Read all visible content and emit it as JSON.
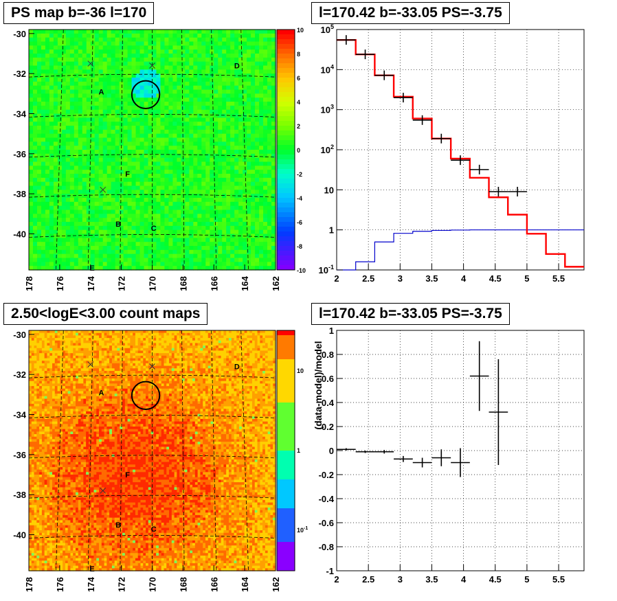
{
  "panels": {
    "top_left_title": "PS map b=-36 l=170",
    "top_right_title": "l=170.42 b=-33.05 PS=-3.75",
    "bottom_left_title": "2.50<logE<3.00 count maps",
    "bottom_right_title": "l=170.42 b=-33.05 PS=-3.75"
  },
  "colors": {
    "data": "#000000",
    "model": "#ff0000",
    "model_low": "#0000cc",
    "grid": "#000000"
  },
  "chart_data": [
    {
      "type": "heatmap",
      "title": "PS map b=-36 l=170",
      "x_ticks": [
        "178",
        "176",
        "174",
        "172",
        "170",
        "168",
        "166",
        "164",
        "162"
      ],
      "y_ticks": [
        "-30",
        "-32",
        "-34",
        "-36",
        "-38",
        "-40"
      ],
      "xlim": [
        178,
        162
      ],
      "ylim": [
        -41.8,
        -29.8
      ],
      "colorbar_ticks": [
        "10",
        "8",
        "6",
        "4",
        "2",
        "0",
        "-2",
        "-4",
        "-6",
        "-8",
        "-10"
      ],
      "colorbar_range": [
        -10,
        10
      ],
      "typical_value": 0.5,
      "labels": [
        {
          "text": "A",
          "l": 173.3,
          "b": -32.9
        },
        {
          "text": "D",
          "l": 164.5,
          "b": -31.6
        },
        {
          "text": "F",
          "l": 171.6,
          "b": -37.0
        },
        {
          "text": "B",
          "l": 172.2,
          "b": -39.5
        },
        {
          "text": "C",
          "l": 169.9,
          "b": -39.7
        },
        {
          "text": "E",
          "l": 173.9,
          "b": -41.7
        }
      ],
      "cross_markers": [
        {
          "l": 174.0,
          "b": -31.5
        },
        {
          "l": 170.0,
          "b": -31.6
        },
        {
          "l": 173.2,
          "b": -37.8
        }
      ],
      "source_circle": {
        "l": 170.42,
        "b": -33.05,
        "r_deg": 0.5
      }
    },
    {
      "type": "line",
      "title": "l=170.42 b=-33.05 PS=-3.75",
      "yscale": "log",
      "xlim": [
        2,
        5.9
      ],
      "ylim": [
        0.1,
        100000
      ],
      "x_ticks": [
        "2",
        "2.5",
        "3",
        "3.5",
        "4",
        "4.5",
        "5",
        "5.5"
      ],
      "y_ticks": [
        "10^-1",
        "1",
        "10",
        "10^2",
        "10^3",
        "10^4",
        "10^5"
      ],
      "data_points": {
        "x": [
          2.15,
          2.45,
          2.75,
          3.05,
          3.35,
          3.65,
          3.95,
          4.25,
          4.55,
          4.85
        ],
        "y": [
          55000,
          24000,
          7200,
          2000,
          550,
          190,
          55,
          32,
          9,
          9
        ],
        "xerr": 0.15
      },
      "model_red": {
        "edges": [
          2.0,
          2.3,
          2.6,
          2.9,
          3.2,
          3.5,
          3.8,
          4.1,
          4.4,
          4.7,
          5.0,
          5.3,
          5.6,
          5.9
        ],
        "values": [
          55000,
          24000,
          7200,
          2100,
          600,
          190,
          60,
          20,
          6.5,
          2.4,
          0.8,
          0.25,
          0.12
        ]
      },
      "model_blue": {
        "edges": [
          2.0,
          2.3,
          2.6,
          2.9,
          3.2,
          3.5,
          3.8,
          4.1,
          4.4,
          4.7,
          5.0,
          5.3,
          5.6,
          5.9
        ],
        "values": [
          0.1,
          0.16,
          0.5,
          0.82,
          0.92,
          0.97,
          0.99,
          1.0,
          1.0,
          1.0,
          1.0,
          1.0,
          1.0
        ]
      }
    },
    {
      "type": "heatmap",
      "title": "2.50<logE<3.00 count maps",
      "x_ticks": [
        "178",
        "176",
        "174",
        "172",
        "170",
        "168",
        "166",
        "164",
        "162"
      ],
      "y_ticks": [
        "-30",
        "-32",
        "-34",
        "-36",
        "-38",
        "-40"
      ],
      "xlim": [
        178,
        162
      ],
      "ylim": [
        -41.8,
        -29.8
      ],
      "colorbar_ticks": [
        "10",
        "1",
        "10^-1"
      ],
      "colorbar_scale": "log",
      "labels": [
        {
          "text": "A",
          "l": 173.3,
          "b": -32.9
        },
        {
          "text": "D",
          "l": 164.5,
          "b": -31.6
        },
        {
          "text": "F",
          "l": 171.6,
          "b": -37.0
        },
        {
          "text": "B",
          "l": 172.2,
          "b": -39.5
        },
        {
          "text": "C",
          "l": 169.9,
          "b": -39.7
        },
        {
          "text": "E",
          "l": 173.9,
          "b": -41.7
        }
      ],
      "cross_markers": [
        {
          "l": 174.0,
          "b": -31.5
        },
        {
          "l": 170.0,
          "b": -31.6
        },
        {
          "l": 173.2,
          "b": -37.8
        }
      ],
      "source_circle": {
        "l": 170.42,
        "b": -33.05,
        "r_deg": 0.5
      }
    },
    {
      "type": "scatter",
      "title": "l=170.42 b=-33.05 PS=-3.75",
      "ylabel": "(data-model)/model",
      "xlim": [
        2,
        5.9
      ],
      "ylim": [
        -1,
        1
      ],
      "x_ticks": [
        "2",
        "2.5",
        "3",
        "3.5",
        "4",
        "4.5",
        "5",
        "5.5"
      ],
      "y_ticks": [
        "-1",
        "-0.8",
        "-0.6",
        "-0.4",
        "-0.2",
        "0",
        "0.2",
        "0.4",
        "0.6",
        "0.8",
        "1"
      ],
      "points": {
        "x": [
          2.15,
          2.45,
          2.75,
          3.05,
          3.35,
          3.65,
          3.95,
          4.25,
          4.55
        ],
        "y": [
          0.01,
          -0.01,
          -0.01,
          -0.07,
          -0.1,
          -0.06,
          -0.1,
          0.62,
          0.32
        ],
        "yerr": [
          0.01,
          0.01,
          0.015,
          0.025,
          0.04,
          0.07,
          0.12,
          0.29,
          0.44
        ],
        "xerr": 0.15
      }
    }
  ]
}
